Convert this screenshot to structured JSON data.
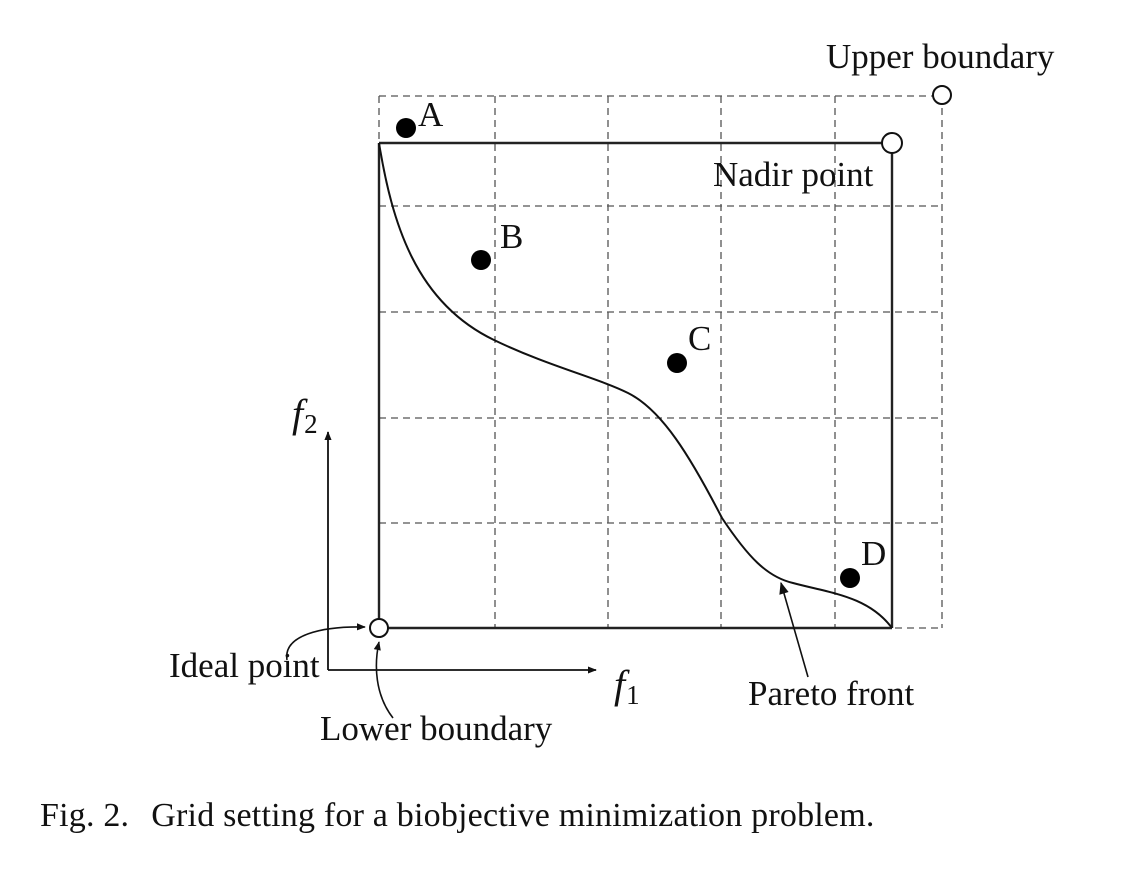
{
  "figure": {
    "labels": {
      "upper_boundary": "Upper boundary",
      "nadir_point": "Nadir point",
      "ideal_point": "Ideal point",
      "lower_boundary": "Lower boundary",
      "pareto_front": "Pareto front"
    },
    "axes": {
      "x_symbol": "f",
      "x_subscript": "1",
      "y_symbol": "f",
      "y_subscript": "2"
    },
    "points": [
      {
        "label": "A"
      },
      {
        "label": "B"
      },
      {
        "label": "C"
      },
      {
        "label": "D"
      }
    ]
  },
  "caption": {
    "number": "Fig. 2.",
    "text": "Grid setting for a biobjective minimization problem."
  }
}
